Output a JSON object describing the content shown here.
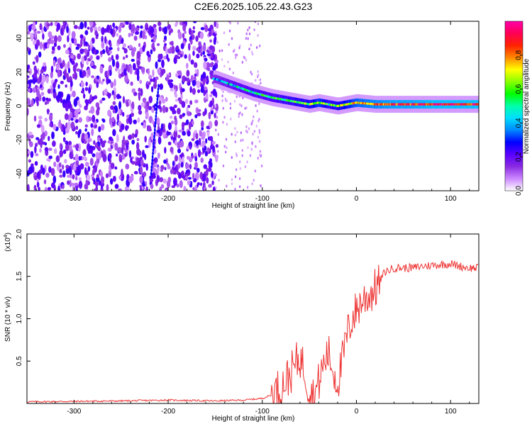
{
  "page_title": "C2E6.2025.105.22.43.G23",
  "chart_data": [
    {
      "type": "heatmap",
      "title": "C2E6.2025.105.22.43.G23",
      "xlabel": "Height of straight line (km)",
      "ylabel": "Frequency (Hz)",
      "xlim": [
        -350,
        130
      ],
      "ylim": [
        -50,
        50
      ],
      "x_ticks": [
        -300,
        -200,
        -100,
        0,
        100
      ],
      "y_ticks": [
        -40,
        -20,
        0,
        20,
        40
      ],
      "colorbar": {
        "label": "Normalized spectral amplitude",
        "range": [
          0,
          1
        ],
        "ticks": [
          0.0,
          0.2,
          0.4,
          0.6,
          0.8
        ],
        "tick_labels": [
          "0.0",
          "0.2",
          "0.4",
          "0.6",
          "0.8"
        ],
        "colors": [
          "#ffffff",
          "#cc88ff",
          "#8a2be2",
          "#5a00ff",
          "#0000ff",
          "#0088ff",
          "#00ddff",
          "#00ffaa",
          "#00ff00",
          "#88ff00",
          "#ffff00",
          "#ff8800",
          "#ff2200",
          "#ff0055",
          "#ff00aa"
        ]
      },
      "ridge": {
        "description_points_x": [
          -150,
          -130,
          -110,
          -90,
          -70,
          -50,
          -40,
          -30,
          -20,
          -10,
          0,
          20,
          40,
          60,
          80,
          100,
          120,
          130
        ],
        "frequency_y": [
          16,
          12,
          8,
          5,
          3,
          1,
          2,
          1,
          0,
          1,
          2,
          1,
          1,
          1,
          1,
          1,
          1,
          1
        ],
        "amplitude": [
          0.35,
          0.45,
          0.5,
          0.5,
          0.55,
          0.6,
          0.7,
          0.55,
          0.6,
          0.65,
          0.75,
          0.8,
          0.85,
          0.85,
          0.9,
          0.9,
          0.9,
          0.9
        ]
      }
    },
    {
      "type": "line",
      "xlabel": "Height of straight line (km)",
      "ylabel": "SNR (10 * v/v)",
      "y_scale_label": "(x10",
      "y_scale_exponent": "4",
      "y_scale_suffix": ")",
      "xlim": [
        -350,
        130
      ],
      "ylim": [
        0,
        2.0
      ],
      "x_ticks": [
        -300,
        -200,
        -100,
        0,
        100
      ],
      "y_ticks": [
        0.5,
        1.0,
        1.5,
        2.0
      ],
      "y_tick_labels": [
        "0.5",
        "1.0",
        "1.5",
        "2.0"
      ],
      "color": "#ee3333",
      "series": [
        {
          "name": "SNR",
          "x": [
            -350,
            -300,
            -250,
            -200,
            -150,
            -120,
            -100,
            -90,
            -80,
            -70,
            -60,
            -55,
            -50,
            -45,
            -40,
            -35,
            -30,
            -25,
            -20,
            -15,
            -10,
            -5,
            0,
            5,
            10,
            15,
            20,
            25,
            30,
            40,
            50,
            60,
            70,
            80,
            90,
            100,
            110,
            120,
            130
          ],
          "values": [
            0.02,
            0.025,
            0.03,
            0.04,
            0.03,
            0.04,
            0.06,
            0.1,
            0.2,
            0.35,
            0.55,
            0.4,
            0.15,
            0.08,
            0.25,
            0.45,
            0.6,
            0.4,
            0.25,
            0.5,
            0.8,
            1.0,
            1.1,
            1.2,
            1.25,
            1.3,
            1.35,
            1.45,
            1.55,
            1.6,
            1.6,
            1.6,
            1.62,
            1.63,
            1.64,
            1.65,
            1.62,
            1.6,
            1.6
          ]
        }
      ]
    }
  ]
}
